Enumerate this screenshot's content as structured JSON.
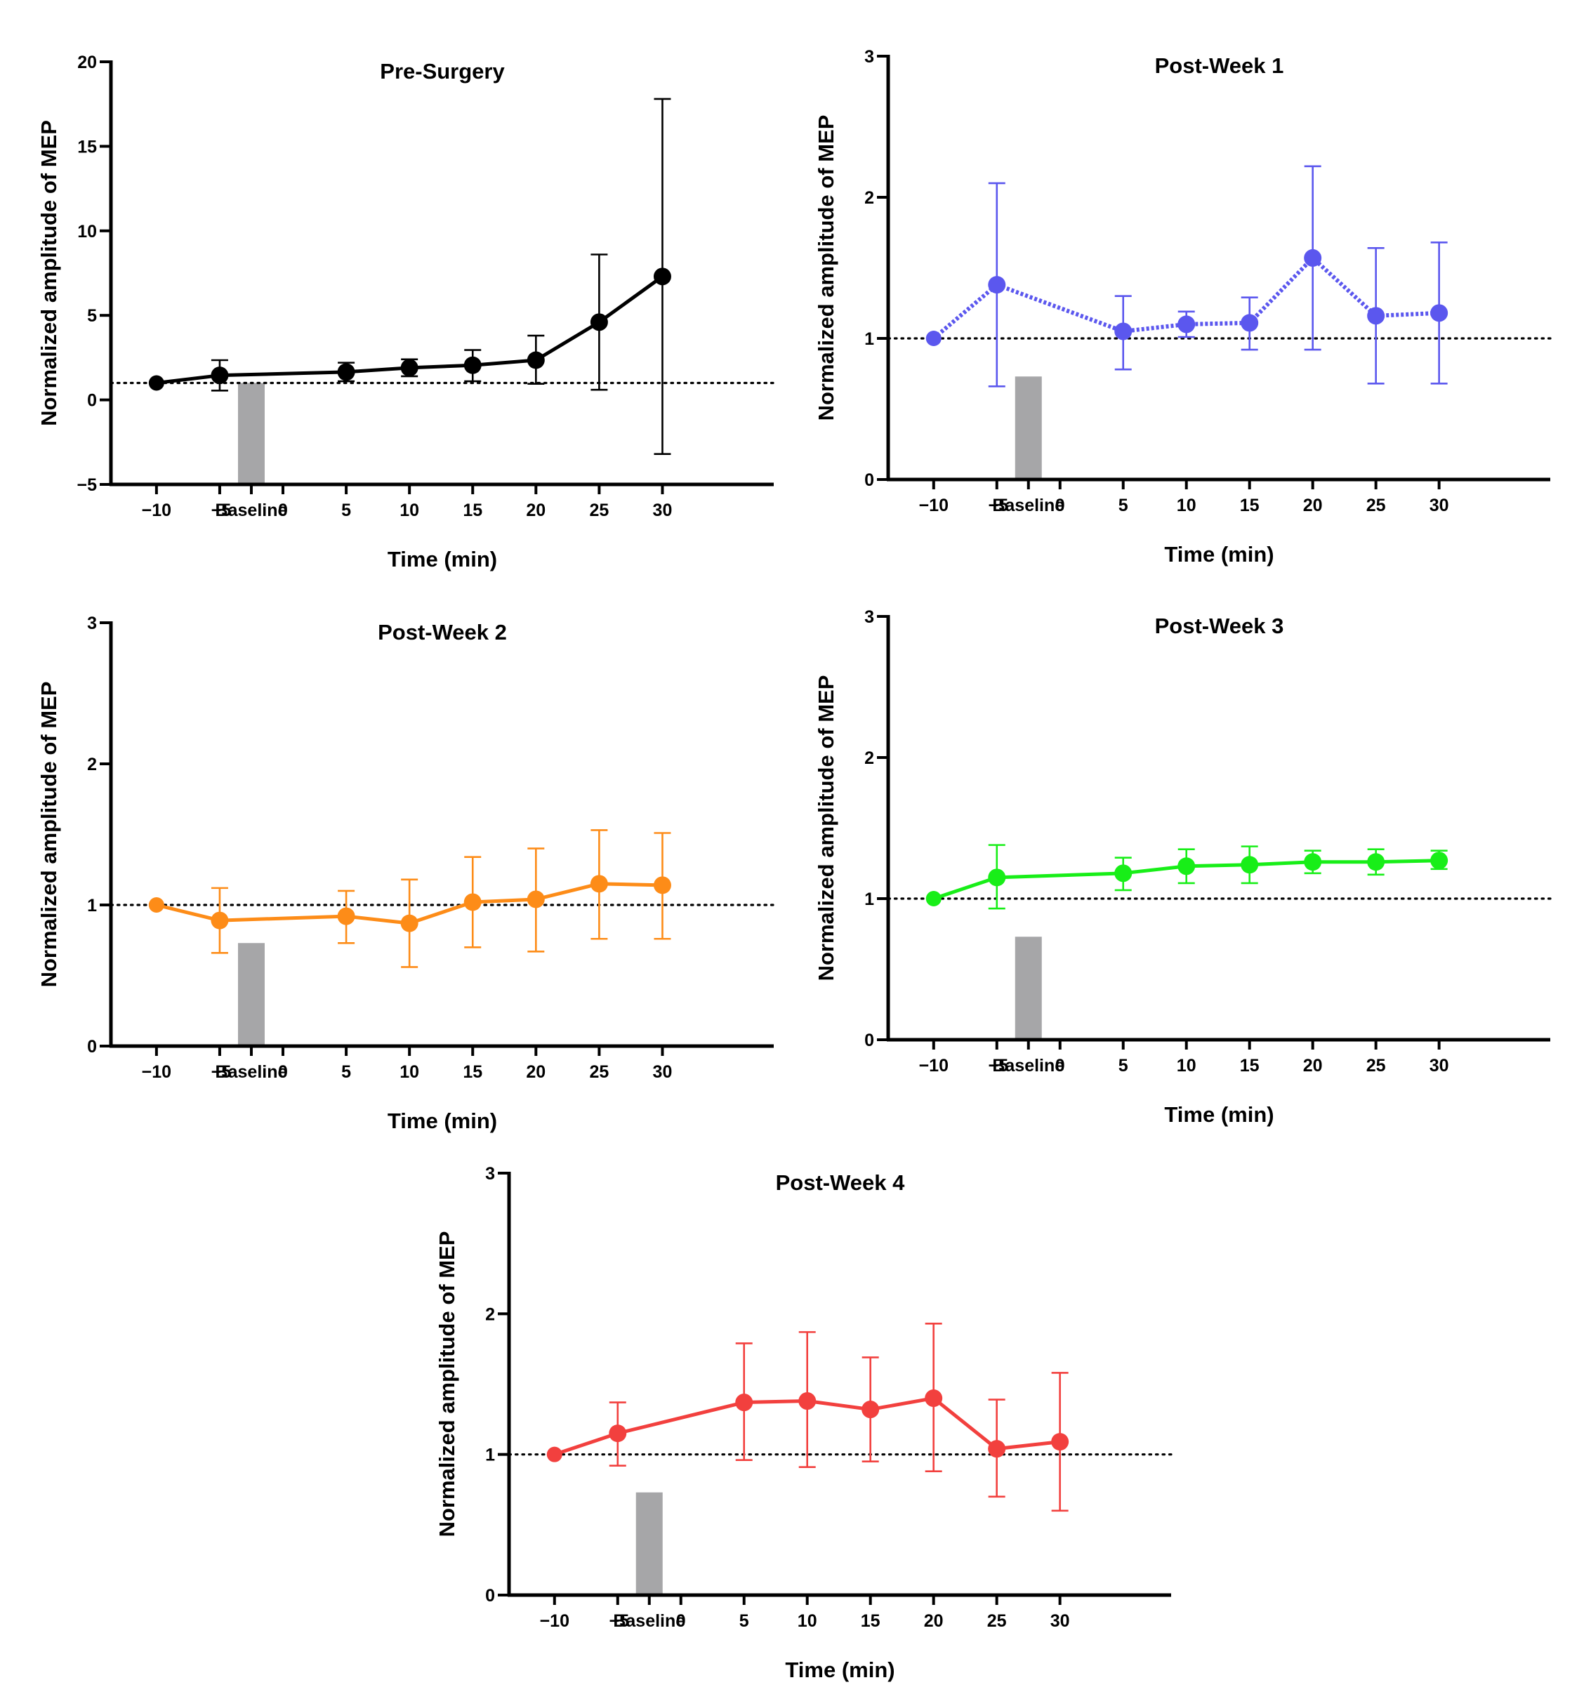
{
  "colors": {
    "axis": "#000000",
    "stim_bar": "#a6a6a8",
    "reference_line": "#000000"
  },
  "chart_data": [
    {
      "type": "line",
      "title": "Pre-Surgery",
      "xlabel": "Time (min)",
      "ylabel": "Normalized amplitude of  MEP",
      "color": "#000000",
      "line_style": "solid",
      "x_tick_labels": [
        "−10",
        "−5",
        "Baseline",
        "0",
        "5",
        "10",
        "15",
        "20",
        "25",
        "30"
      ],
      "y_ticks": [
        -5,
        0,
        5,
        10,
        15,
        20
      ],
      "y_tick_labels": [
        "−5",
        "0",
        "5",
        "10",
        "15",
        "20"
      ],
      "ylim": [
        -5,
        20
      ],
      "reference_y": 1,
      "stim_bar": {
        "x_category": "Baseline",
        "top": 1.0
      },
      "series": [
        {
          "name": "Pre-Surgery",
          "x": [
            -10,
            -5,
            5,
            10,
            15,
            20,
            25,
            30
          ],
          "y": [
            1.0,
            1.45,
            1.65,
            1.9,
            2.05,
            2.35,
            4.6,
            7.3
          ],
          "err_low": [
            1.0,
            0.55,
            1.1,
            1.4,
            1.1,
            0.95,
            0.6,
            -3.2
          ],
          "err_high": [
            1.0,
            2.35,
            2.2,
            2.4,
            2.95,
            3.8,
            8.6,
            17.8
          ]
        }
      ]
    },
    {
      "type": "line",
      "title": "Post-Week 1",
      "xlabel": "Time (min)",
      "ylabel": "Normalized amplitude of  MEP",
      "color": "#5b57ee",
      "line_style": "dashed",
      "x_tick_labels": [
        "−10",
        "−5",
        "Baseline",
        "0",
        "5",
        "10",
        "15",
        "20",
        "25",
        "30"
      ],
      "y_ticks": [
        0,
        1,
        2,
        3
      ],
      "y_tick_labels": [
        "0",
        "1",
        "2",
        "3"
      ],
      "ylim": [
        0,
        3
      ],
      "reference_y": 1,
      "stim_bar": {
        "x_category": "Baseline",
        "top": 0.73
      },
      "series": [
        {
          "name": "Post-Week 1",
          "x": [
            -10,
            -5,
            5,
            10,
            15,
            20,
            25,
            30
          ],
          "y": [
            1.0,
            1.38,
            1.05,
            1.1,
            1.11,
            1.57,
            1.16,
            1.18
          ],
          "err_low": [
            1.0,
            0.66,
            0.78,
            1.01,
            0.92,
            0.92,
            0.68,
            0.68
          ],
          "err_high": [
            1.0,
            2.1,
            1.3,
            1.19,
            1.29,
            2.22,
            1.64,
            1.68
          ]
        }
      ]
    },
    {
      "type": "line",
      "title": "Post-Week 2",
      "xlabel": "Time (min)",
      "ylabel": "Normalized amplitude of  MEP",
      "color": "#fd8c18",
      "line_style": "solid",
      "x_tick_labels": [
        "−10",
        "−5",
        "Baseline",
        "0",
        "5",
        "10",
        "15",
        "20",
        "25",
        "30"
      ],
      "y_ticks": [
        0,
        1,
        2,
        3
      ],
      "y_tick_labels": [
        "0",
        "1",
        "2",
        "3"
      ],
      "ylim": [
        0,
        3
      ],
      "reference_y": 1,
      "stim_bar": {
        "x_category": "Baseline",
        "top": 0.73
      },
      "series": [
        {
          "name": "Post-Week 2",
          "x": [
            -10,
            -5,
            5,
            10,
            15,
            20,
            25,
            30
          ],
          "y": [
            1.0,
            0.89,
            0.92,
            0.87,
            1.02,
            1.04,
            1.15,
            1.14
          ],
          "err_low": [
            1.0,
            0.66,
            0.73,
            0.56,
            0.7,
            0.67,
            0.76,
            0.76
          ],
          "err_high": [
            1.0,
            1.12,
            1.1,
            1.18,
            1.34,
            1.4,
            1.53,
            1.51
          ]
        }
      ]
    },
    {
      "type": "line",
      "title": "Post-Week 3",
      "xlabel": "Time (min)",
      "ylabel": "Normalized amplitude of  MEP",
      "color": "#18ee18",
      "line_style": "solid",
      "x_tick_labels": [
        "−10",
        "−5",
        "Baseline",
        "0",
        "5",
        "10",
        "15",
        "20",
        "25",
        "30"
      ],
      "y_ticks": [
        0,
        1,
        2,
        3
      ],
      "y_tick_labels": [
        "0",
        "1",
        "2",
        "3"
      ],
      "ylim": [
        0,
        3
      ],
      "reference_y": 1,
      "stim_bar": {
        "x_category": "Baseline",
        "top": 0.73
      },
      "series": [
        {
          "name": "Post-Week 3",
          "x": [
            -10,
            -5,
            5,
            10,
            15,
            20,
            25,
            30
          ],
          "y": [
            1.0,
            1.15,
            1.18,
            1.23,
            1.24,
            1.26,
            1.26,
            1.27
          ],
          "err_low": [
            1.0,
            0.93,
            1.06,
            1.11,
            1.11,
            1.18,
            1.17,
            1.21
          ],
          "err_high": [
            1.0,
            1.38,
            1.29,
            1.35,
            1.37,
            1.34,
            1.35,
            1.34
          ]
        }
      ]
    },
    {
      "type": "line",
      "title": "Post-Week 4",
      "xlabel": "Time (min)",
      "ylabel": "Normalized amplitude of  MEP",
      "color": "#f2403e",
      "line_style": "solid",
      "x_tick_labels": [
        "−10",
        "−5",
        "Baseline",
        "0",
        "5",
        "10",
        "15",
        "20",
        "25",
        "30"
      ],
      "y_ticks": [
        0,
        1,
        2,
        3
      ],
      "y_tick_labels": [
        "0",
        "1",
        "2",
        "3"
      ],
      "ylim": [
        0,
        3
      ],
      "reference_y": 1,
      "stim_bar": {
        "x_category": "Baseline",
        "top": 0.73
      },
      "series": [
        {
          "name": "Post-Week 4",
          "x": [
            -10,
            -5,
            5,
            10,
            15,
            20,
            25,
            30
          ],
          "y": [
            1.0,
            1.15,
            1.37,
            1.38,
            1.32,
            1.4,
            1.04,
            1.09
          ],
          "err_low": [
            1.0,
            0.92,
            0.96,
            0.91,
            0.95,
            0.88,
            0.7,
            0.6
          ],
          "err_high": [
            1.0,
            1.37,
            1.79,
            1.87,
            1.69,
            1.93,
            1.39,
            1.58
          ]
        }
      ]
    }
  ]
}
